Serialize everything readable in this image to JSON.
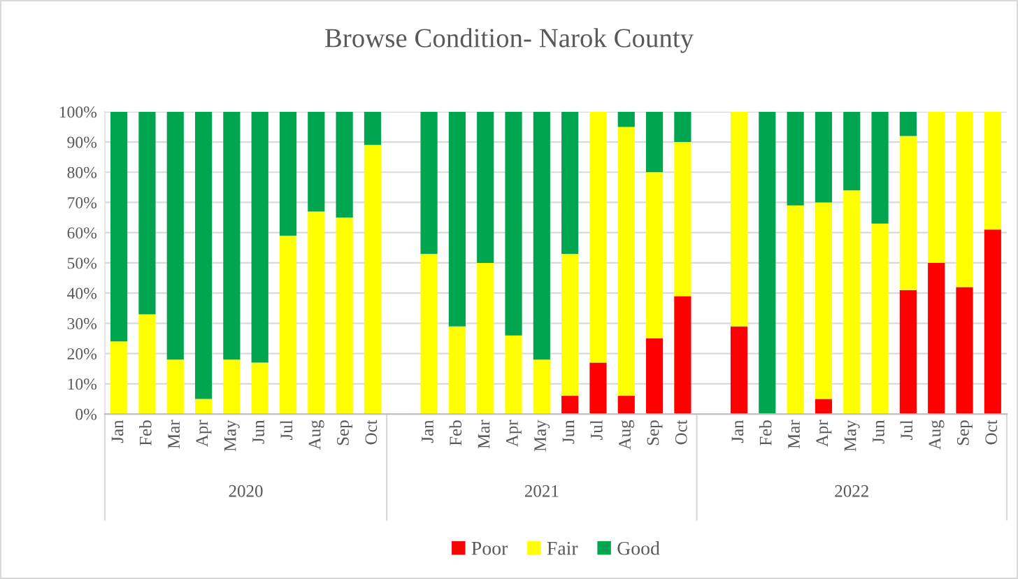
{
  "chart_data": {
    "type": "bar",
    "title": "Browse Condition- Narok County",
    "categories": [
      "Jan",
      "Feb",
      "Mar",
      "Apr",
      "May",
      "Jun",
      "Jul",
      "Aug",
      "Sep",
      "Oct",
      null,
      "Jan",
      "Feb",
      "Mar",
      "Apr",
      "May",
      "Jun",
      "Jul",
      "Aug",
      "Sep",
      "Oct",
      null,
      "Jan",
      "Feb",
      "Mar",
      "Apr",
      "May",
      "Jun",
      "Jul",
      "Aug",
      "Sep",
      "Oct"
    ],
    "series": [
      {
        "name": "Poor",
        "color": "#ff0000",
        "values": [
          0,
          0,
          0,
          0,
          0,
          0,
          0,
          0,
          0,
          0,
          null,
          0,
          0,
          0,
          0,
          0,
          6,
          17,
          6,
          25,
          39,
          null,
          29,
          0,
          0,
          5,
          0,
          0,
          41,
          50,
          42,
          61
        ]
      },
      {
        "name": "Fair",
        "color": "#ffff00",
        "values": [
          24,
          33,
          18,
          5,
          18,
          17,
          59,
          67,
          65,
          89,
          null,
          53,
          29,
          50,
          26,
          18,
          47,
          83,
          89,
          55,
          51,
          null,
          71,
          0,
          69,
          65,
          74,
          63,
          51,
          50,
          58,
          39
        ]
      },
      {
        "name": "Good",
        "color": "#00a550",
        "values": [
          76,
          67,
          82,
          95,
          82,
          83,
          41,
          33,
          35,
          11,
          null,
          47,
          71,
          50,
          74,
          82,
          47,
          0,
          5,
          20,
          10,
          null,
          0,
          100,
          31,
          30,
          26,
          37,
          8,
          0,
          0,
          0
        ]
      }
    ],
    "stacked": true,
    "ylim": [
      0,
      100
    ],
    "yticks": [
      {
        "value": 0,
        "label": "0%"
      },
      {
        "value": 10,
        "label": "10%"
      },
      {
        "value": 20,
        "label": "20%"
      },
      {
        "value": 30,
        "label": "30%"
      },
      {
        "value": 40,
        "label": "40%"
      },
      {
        "value": 50,
        "label": "50%"
      },
      {
        "value": 60,
        "label": "60%"
      },
      {
        "value": 70,
        "label": "70%"
      },
      {
        "value": 80,
        "label": "80%"
      },
      {
        "value": 90,
        "label": "90%"
      },
      {
        "value": 100,
        "label": "100%"
      }
    ],
    "grid": "y",
    "legend": "bottom",
    "annotations": [
      "2020",
      "2021",
      "2022"
    ]
  }
}
